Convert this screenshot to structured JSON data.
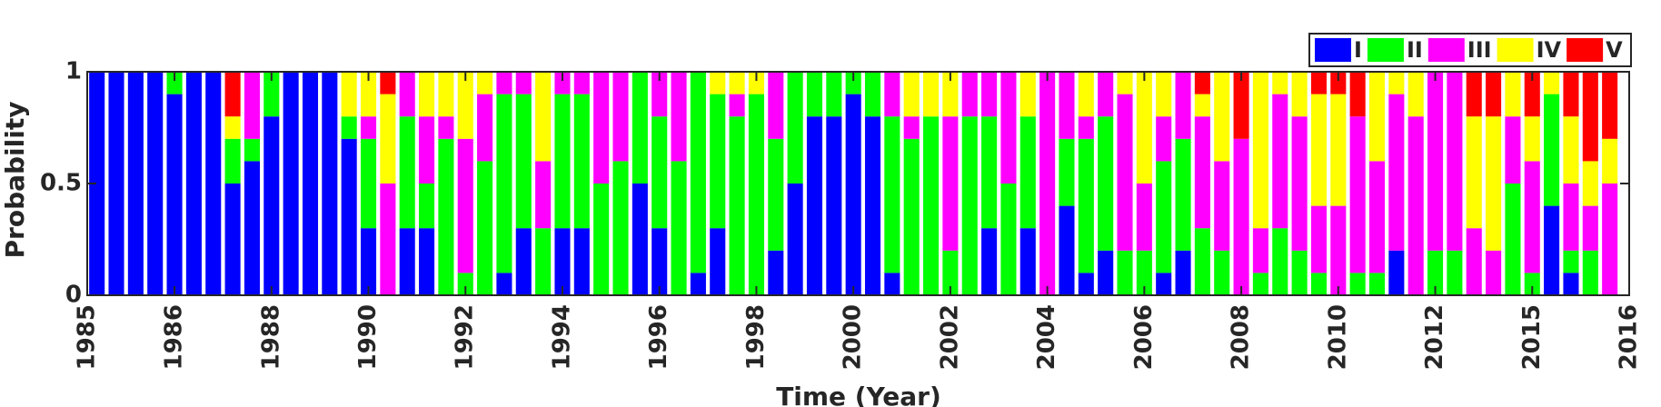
{
  "chart_data": {
    "type": "stacked_bar",
    "xlabel": "Time (Year)",
    "ylabel": "Probability",
    "x": [
      1,
      2,
      3,
      4,
      5,
      6,
      7,
      8,
      9,
      10,
      11,
      12,
      13,
      14,
      15,
      16,
      17,
      18,
      19,
      20,
      21,
      22,
      23,
      24,
      25,
      26,
      27,
      28,
      29,
      30,
      31,
      32,
      33,
      34,
      35,
      36,
      37,
      38,
      39,
      40,
      41,
      42,
      43,
      44,
      45,
      46,
      47,
      48,
      49,
      50,
      51,
      52,
      53,
      54,
      55,
      56,
      57,
      58,
      59,
      60,
      61,
      62,
      63,
      64,
      65,
      66,
      67,
      68,
      69,
      70,
      71,
      72,
      73,
      74,
      75,
      76,
      77,
      78,
      79
    ],
    "xlim": [
      0.5,
      80
    ],
    "xticks": [
      {
        "value": 0.5,
        "label": "1985"
      },
      {
        "value": 5,
        "label": "1986"
      },
      {
        "value": 10,
        "label": "1988"
      },
      {
        "value": 15,
        "label": "1990"
      },
      {
        "value": 20,
        "label": "1992"
      },
      {
        "value": 25,
        "label": "1994"
      },
      {
        "value": 30,
        "label": "1996"
      },
      {
        "value": 35,
        "label": "1998"
      },
      {
        "value": 40,
        "label": "2000"
      },
      {
        "value": 45,
        "label": "2002"
      },
      {
        "value": 50,
        "label": "2004"
      },
      {
        "value": 55,
        "label": "2006"
      },
      {
        "value": 60,
        "label": "2008"
      },
      {
        "value": 65,
        "label": "2010"
      },
      {
        "value": 70,
        "label": "2012"
      },
      {
        "value": 75,
        "label": "2015"
      },
      {
        "value": 80,
        "label": "2016"
      }
    ],
    "ylim": [
      0,
      1
    ],
    "yticks": [
      0,
      0.5,
      1
    ],
    "grid": false,
    "legend": "top-right",
    "series": [
      {
        "name": "I",
        "color": "#0000ff",
        "values": [
          1,
          1,
          1,
          1,
          0.9,
          1,
          1,
          0.5,
          0.6,
          0.8,
          1,
          1,
          1,
          0.7,
          0.3,
          0,
          0.3,
          0.3,
          0,
          0,
          0,
          0.1,
          0.3,
          0,
          0.3,
          0.3,
          0,
          0,
          0.5,
          0.3,
          0,
          0.1,
          0.3,
          0,
          0,
          0.2,
          0.5,
          0.8,
          0.8,
          0.9,
          0.8,
          0.1,
          0,
          0,
          0,
          0,
          0.3,
          0,
          0.3,
          0,
          0.4,
          0.1,
          0.2,
          0,
          0,
          0.1,
          0.2,
          0,
          0,
          0,
          0,
          0,
          0,
          0,
          0,
          0,
          0,
          0.2,
          0,
          0,
          0,
          0,
          0,
          0,
          0,
          0.4,
          0.1,
          0,
          0
        ]
      },
      {
        "name": "II",
        "color": "#00ff00",
        "values": [
          0,
          0,
          0,
          0,
          0.1,
          0,
          0,
          0.2,
          0.1,
          0.2,
          0,
          0,
          0,
          0.1,
          0.4,
          0,
          0.5,
          0.2,
          0.7,
          0.1,
          0.6,
          0.8,
          0.6,
          0.3,
          0.6,
          0.6,
          0.5,
          0.6,
          0.5,
          0.5,
          0.6,
          0.9,
          0.6,
          0.8,
          0.9,
          0.5,
          0.5,
          0.2,
          0.2,
          0.1,
          0.2,
          0.7,
          0.7,
          0.8,
          0.2,
          0.8,
          0.5,
          0.5,
          0.5,
          0,
          0.3,
          0.6,
          0.6,
          0.2,
          0.2,
          0.5,
          0.5,
          0.3,
          0.2,
          0,
          0.1,
          0.3,
          0.2,
          0.1,
          0,
          0.1,
          0.1,
          0,
          0,
          0.2,
          0.2,
          0,
          0,
          0.5,
          0.1,
          0.5,
          0.1,
          0.2,
          0
        ]
      },
      {
        "name": "III",
        "color": "#ff00ff",
        "values": [
          0,
          0,
          0,
          0,
          0,
          0,
          0,
          0,
          0.3,
          0,
          0,
          0,
          0,
          0,
          0.1,
          0.5,
          0.2,
          0.3,
          0.1,
          0.6,
          0.3,
          0.1,
          0.1,
          0.3,
          0.1,
          0.1,
          0.5,
          0.4,
          0,
          0.2,
          0.4,
          0,
          0,
          0.1,
          0,
          0.3,
          0,
          0,
          0,
          0,
          0,
          0.2,
          0.1,
          0,
          0.6,
          0.2,
          0.2,
          0.5,
          0,
          1,
          0.3,
          0.1,
          0.2,
          0.7,
          0.3,
          0.2,
          0.3,
          0.5,
          0.4,
          0.7,
          0.2,
          0.6,
          0.6,
          0.3,
          0.4,
          0.7,
          0.5,
          0.7,
          0.8,
          0.8,
          0.8,
          0.3,
          0.2,
          0.3,
          0.5,
          0,
          0.3,
          0.2,
          0.5
        ]
      },
      {
        "name": "IV",
        "color": "#ffff00",
        "values": [
          0,
          0,
          0,
          0,
          0,
          0,
          0,
          0.1,
          0,
          0,
          0,
          0,
          0,
          0.2,
          0.2,
          0.4,
          0,
          0.2,
          0.2,
          0.3,
          0.1,
          0,
          0,
          0.4,
          0,
          0,
          0,
          0,
          0,
          0,
          0,
          0,
          0.1,
          0.1,
          0.1,
          0,
          0,
          0,
          0,
          0,
          0,
          0,
          0.2,
          0.2,
          0.2,
          0,
          0,
          0,
          0.2,
          0,
          0,
          0.2,
          0,
          0.1,
          0.5,
          0.2,
          0,
          0.1,
          0.4,
          0,
          0.7,
          0.1,
          0.2,
          0.5,
          0.5,
          0,
          0.4,
          0.1,
          0.2,
          0,
          0,
          0.5,
          0.6,
          0.2,
          0.2,
          0.1,
          0.3,
          0.2,
          0.2
        ]
      },
      {
        "name": "V",
        "color": "#ff0000",
        "values": [
          0,
          0,
          0,
          0,
          0,
          0,
          0,
          0.2,
          0,
          0,
          0,
          0,
          0,
          0,
          0,
          0.1,
          0,
          0,
          0,
          0,
          0,
          0,
          0,
          0,
          0,
          0,
          0,
          0,
          0,
          0,
          0,
          0,
          0,
          0,
          0,
          0,
          0,
          0,
          0,
          0,
          0,
          0,
          0,
          0,
          0,
          0,
          0,
          0,
          0,
          0,
          0,
          0,
          0,
          0,
          0,
          0,
          0,
          0.1,
          0,
          0.3,
          0,
          0,
          0,
          0.1,
          0.1,
          0.2,
          0,
          0,
          0,
          0,
          0,
          0.2,
          0.2,
          0,
          0.2,
          0,
          0.2,
          0.4,
          0.3
        ]
      }
    ]
  }
}
